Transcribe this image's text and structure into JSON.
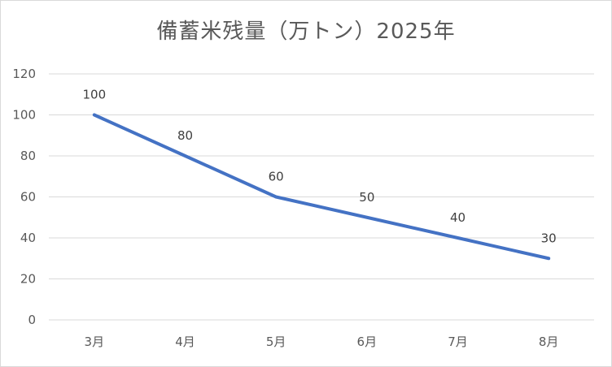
{
  "chart_data": {
    "type": "line",
    "title": "備蓄米残量（万トン）2025年",
    "categories": [
      "3月",
      "4月",
      "5月",
      "6月",
      "7月",
      "8月"
    ],
    "series": [
      {
        "values": [
          100,
          80,
          60,
          50,
          40,
          30
        ]
      }
    ],
    "ylim": [
      0,
      120
    ],
    "yticks": [
      0,
      20,
      40,
      60,
      80,
      100,
      120
    ],
    "grid": true,
    "data_labels": true,
    "legend": "none",
    "colors": {
      "line": "#4472c4",
      "grid": "#d9d9d9",
      "text": "#595959"
    }
  }
}
